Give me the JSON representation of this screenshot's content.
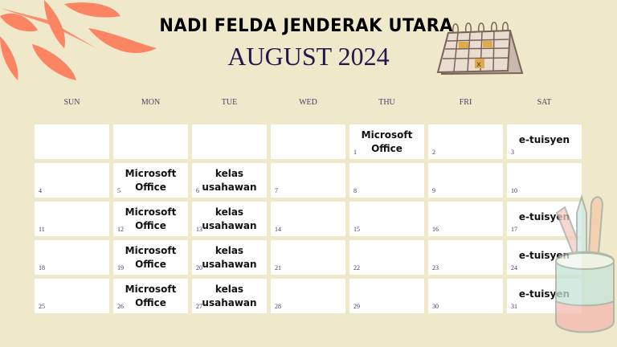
{
  "header": {
    "title": "NADI FELDA JENDERAK UTARA",
    "subtitle": "AUGUST 2024"
  },
  "weekdays": [
    "SUN",
    "MON",
    "TUE",
    "WED",
    "THU",
    "FRI",
    "SAT"
  ],
  "weeks": [
    [
      {
        "day": "",
        "event": ""
      },
      {
        "day": "",
        "event": ""
      },
      {
        "day": "",
        "event": ""
      },
      {
        "day": "",
        "event": ""
      },
      {
        "day": "1",
        "event": "Microsoft\nOffice"
      },
      {
        "day": "2",
        "event": ""
      },
      {
        "day": "3",
        "event": "e-tuisyen"
      }
    ],
    [
      {
        "day": "4",
        "event": ""
      },
      {
        "day": "5",
        "event": "Microsoft\nOffice"
      },
      {
        "day": "6",
        "event": "kelas\nusahawan"
      },
      {
        "day": "7",
        "event": ""
      },
      {
        "day": "8",
        "event": ""
      },
      {
        "day": "9",
        "event": ""
      },
      {
        "day": "10",
        "event": ""
      }
    ],
    [
      {
        "day": "11",
        "event": ""
      },
      {
        "day": "12",
        "event": "Microsoft\nOffice"
      },
      {
        "day": "13",
        "event": "kelas\nusahawan"
      },
      {
        "day": "14",
        "event": ""
      },
      {
        "day": "15",
        "event": ""
      },
      {
        "day": "16",
        "event": ""
      },
      {
        "day": "17",
        "event": "e-tuisyen"
      }
    ],
    [
      {
        "day": "18",
        "event": ""
      },
      {
        "day": "19",
        "event": "Microsoft\nOffice"
      },
      {
        "day": "20",
        "event": "kelas\nusahawan"
      },
      {
        "day": "21",
        "event": ""
      },
      {
        "day": "22",
        "event": ""
      },
      {
        "day": "23",
        "event": ""
      },
      {
        "day": "24",
        "event": "e-tuisyen"
      }
    ],
    [
      {
        "day": "25",
        "event": ""
      },
      {
        "day": "26",
        "event": "Microsoft\nOffice"
      },
      {
        "day": "27",
        "event": "kelas\nusahawan"
      },
      {
        "day": "28",
        "event": ""
      },
      {
        "day": "29",
        "event": ""
      },
      {
        "day": "30",
        "event": ""
      },
      {
        "day": "31",
        "event": "e-tuisyen"
      }
    ]
  ],
  "colors": {
    "background": "#efe8cb",
    "leaf": "#fb8462",
    "cell": "#ffffff",
    "day_number": "#3e3468",
    "subtitle": "#24174a"
  },
  "icons": [
    "leaves-decoration",
    "desk-calendar-icon",
    "pencil-cup-icon"
  ]
}
